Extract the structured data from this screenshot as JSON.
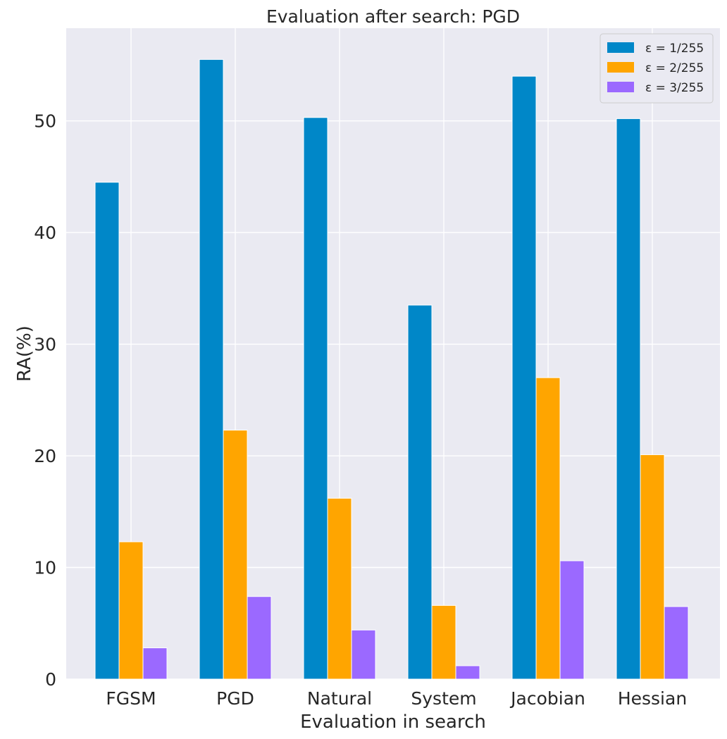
{
  "chart_data": {
    "type": "bar",
    "title": "Evaluation after search: PGD",
    "xlabel": "Evaluation in search",
    "ylabel": "RA(%)",
    "categories": [
      "FGSM",
      "PGD",
      "Natural",
      "System",
      "Jacobian",
      "Hessian"
    ],
    "series": [
      {
        "name": "ε = 1/255",
        "color": "#0087c8",
        "values": [
          44.5,
          55.5,
          50.3,
          33.5,
          54.0,
          50.2
        ]
      },
      {
        "name": "ε = 2/255",
        "color": "#ffa500",
        "values": [
          12.3,
          22.3,
          16.2,
          6.6,
          27.0,
          20.1
        ]
      },
      {
        "name": "ε = 3/255",
        "color": "#9b69ff",
        "values": [
          2.8,
          7.4,
          4.4,
          1.2,
          10.6,
          6.5
        ]
      }
    ],
    "ylim": [
      0,
      58.3
    ],
    "yticks": [
      0,
      10,
      20,
      30,
      40,
      50
    ],
    "grid": true,
    "legend_position": "top-right"
  }
}
